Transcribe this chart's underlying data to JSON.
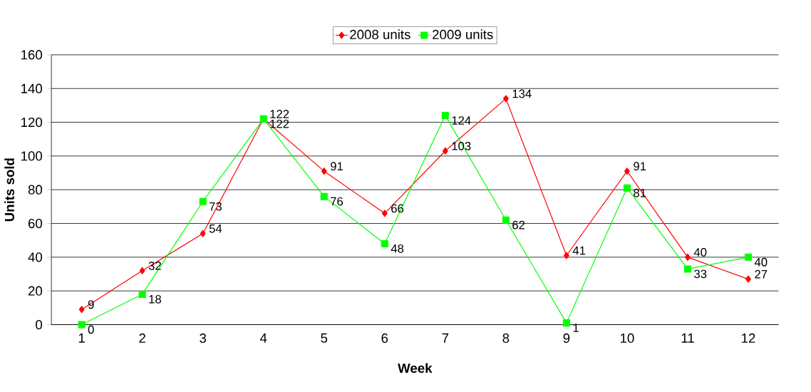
{
  "chart_data": {
    "type": "line",
    "xlabel": "Week",
    "ylabel": "Units sold",
    "categories": [
      "1",
      "2",
      "3",
      "4",
      "5",
      "6",
      "7",
      "8",
      "9",
      "10",
      "11",
      "12"
    ],
    "series": [
      {
        "name": "2008 units",
        "color": "#ff0000",
        "marker": "diamond",
        "values": [
          9,
          32,
          54,
          122,
          91,
          66,
          103,
          134,
          41,
          91,
          40,
          27
        ]
      },
      {
        "name": "2009 units",
        "color": "#00ff00",
        "marker": "square",
        "values": [
          0,
          18,
          73,
          122,
          76,
          48,
          124,
          62,
          1,
          81,
          33,
          40
        ]
      }
    ],
    "ylim": [
      0,
      160
    ],
    "yticks": [
      0,
      20,
      40,
      60,
      80,
      100,
      120,
      140,
      160
    ],
    "grid": "y",
    "legend": "top",
    "data_labels": true,
    "line_style": "solid"
  }
}
